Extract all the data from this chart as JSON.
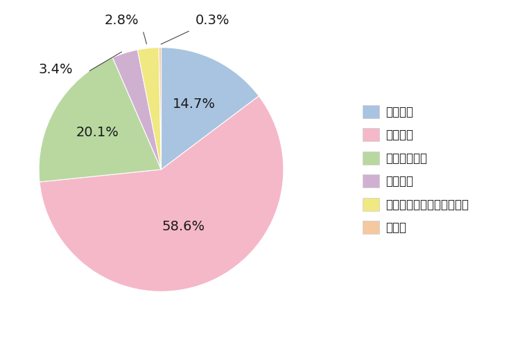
{
  "labels": [
    "よくある",
    "時々ある",
    "ほとんどない",
    "全くない",
    "わからない・答えたくない",
    "その他"
  ],
  "values": [
    14.7,
    58.6,
    20.1,
    3.4,
    2.8,
    0.3
  ],
  "colors": [
    "#a8c4e0",
    "#f5b8c8",
    "#b8d8a0",
    "#d0b0d0",
    "#f0e880",
    "#f5c8a0"
  ],
  "label_texts": [
    "14.7%",
    "58.6%",
    "20.1%",
    "3.4%",
    "2.8%",
    "0.3%"
  ],
  "background_color": "#ffffff",
  "legend_background": "#efefef",
  "text_color": "#1a1a1a",
  "font_size_label": 14,
  "font_size_legend": 12
}
